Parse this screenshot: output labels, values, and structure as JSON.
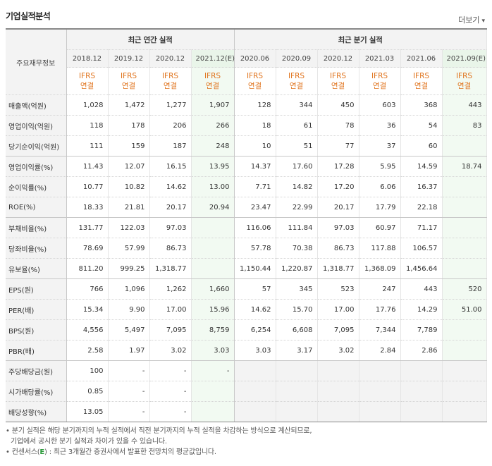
{
  "header": {
    "title": "기업실적분석",
    "more_label": "더보기",
    "more_arrow": "▾"
  },
  "table": {
    "rowhead_label": "주요재무정보",
    "group_annual": "최근 연간 실적",
    "group_quarter": "최근 분기 실적",
    "columns": [
      "2018.12",
      "2019.12",
      "2020.12",
      "2021.12(E)",
      "2020.06",
      "2020.09",
      "2020.12",
      "2021.03",
      "2021.06",
      "2021.09(E)"
    ],
    "ifrs_line1": "IFRS",
    "ifrs_line2": "연결",
    "rows": [
      {
        "label": "매출액(억원)",
        "values": [
          "1,028",
          "1,472",
          "1,277",
          "1,907",
          "128",
          "344",
          "450",
          "603",
          "368",
          "443"
        ]
      },
      {
        "label": "영업이익(억원)",
        "values": [
          "118",
          "178",
          "206",
          "266",
          "18",
          "61",
          "78",
          "36",
          "54",
          "83"
        ]
      },
      {
        "label": "당기순이익(억원)",
        "values": [
          "111",
          "159",
          "187",
          "248",
          "10",
          "51",
          "77",
          "37",
          "60",
          ""
        ]
      },
      {
        "label": "영업이익률(%)",
        "values": [
          "11.43",
          "12.07",
          "16.15",
          "13.95",
          "14.37",
          "17.60",
          "17.28",
          "5.95",
          "14.59",
          "18.74"
        ]
      },
      {
        "label": "순이익률(%)",
        "values": [
          "10.77",
          "10.82",
          "14.62",
          "13.00",
          "7.71",
          "14.82",
          "17.20",
          "6.06",
          "16.37",
          ""
        ]
      },
      {
        "label": "ROE(%)",
        "values": [
          "18.33",
          "21.81",
          "20.17",
          "20.94",
          "23.47",
          "22.99",
          "20.17",
          "17.79",
          "22.18",
          ""
        ]
      },
      {
        "label": "부채비율(%)",
        "values": [
          "131.77",
          "122.03",
          "97.03",
          "",
          "116.06",
          "111.84",
          "97.03",
          "60.97",
          "71.17",
          ""
        ]
      },
      {
        "label": "당좌비율(%)",
        "values": [
          "78.69",
          "57.99",
          "86.73",
          "",
          "57.78",
          "70.38",
          "86.73",
          "117.88",
          "106.57",
          ""
        ]
      },
      {
        "label": "유보율(%)",
        "values": [
          "811.20",
          "999.25",
          "1,318.77",
          "",
          "1,150.44",
          "1,220.87",
          "1,318.77",
          "1,368.09",
          "1,456.64",
          ""
        ]
      },
      {
        "label": "EPS(원)",
        "values": [
          "766",
          "1,096",
          "1,262",
          "1,660",
          "57",
          "345",
          "523",
          "247",
          "443",
          "520"
        ]
      },
      {
        "label": "PER(배)",
        "values": [
          "15.34",
          "9.90",
          "17.00",
          "15.96",
          "14.62",
          "15.70",
          "17.00",
          "17.76",
          "14.29",
          "51.00"
        ]
      },
      {
        "label": "BPS(원)",
        "values": [
          "4,556",
          "5,497",
          "7,095",
          "8,759",
          "6,254",
          "6,608",
          "7,095",
          "7,344",
          "7,789",
          ""
        ]
      },
      {
        "label": "PBR(배)",
        "values": [
          "2.58",
          "1.97",
          "3.02",
          "3.03",
          "3.03",
          "3.17",
          "3.02",
          "2.84",
          "2.86",
          ""
        ]
      },
      {
        "label": "주당배당금(원)",
        "values": [
          "100",
          "-",
          "-",
          "-",
          "",
          "",
          "",
          "",
          "",
          ""
        ]
      },
      {
        "label": "시가배당률(%)",
        "values": [
          "0.85",
          "-",
          "-",
          "",
          "",
          "",
          "",
          "",
          "",
          ""
        ]
      },
      {
        "label": "배당성향(%)",
        "values": [
          "13.05",
          "-",
          "-",
          "",
          "",
          "",
          "",
          "",
          "",
          ""
        ]
      }
    ]
  },
  "notes": {
    "line1": "분기 실적은 해당 분기까지의 누적 실적에서 직전 분기까지의 누적 실적을 차감하는 방식으로 계산되므로,",
    "line2": "기업에서 공시한 분기 실적과 차이가 있을 수 있습니다.",
    "line3_pre": "컨센서스(",
    "line3_e": "E",
    "line3_post": ") : 최근 3개월간 증권사에서 발표한 전망치의 평균값입니다."
  },
  "colors": {
    "estimate_bg": "#f2faf2",
    "ifrs_orange": "#e0731c",
    "estimate_green": "#2a9a3a"
  }
}
